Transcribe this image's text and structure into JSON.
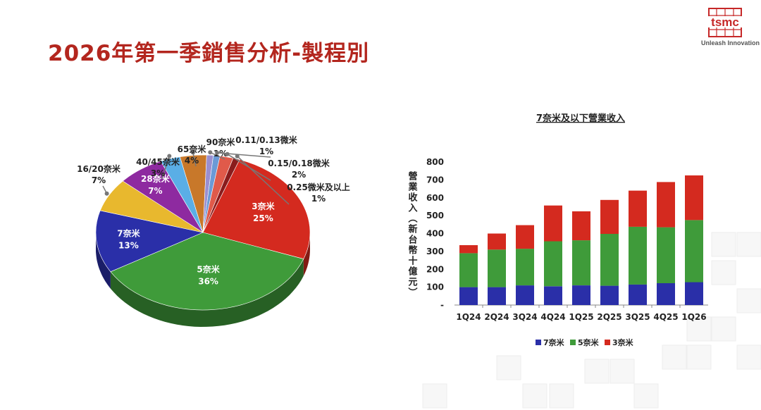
{
  "page": {
    "title": "2026年第一季銷售分析-製程別",
    "logo_text": "tsmc",
    "tagline": "Unleash Innovation"
  },
  "chart_data": [
    {
      "type": "pie",
      "title": "",
      "slices": [
        {
          "label": "3奈米",
          "pct_label": "25%",
          "value": 25,
          "color": "#d42a1f"
        },
        {
          "label": "5奈米",
          "pct_label": "36%",
          "value": 36,
          "color": "#3f9b3a"
        },
        {
          "label": "7奈米",
          "pct_label": "13%",
          "value": 13,
          "color": "#2a2fa8"
        },
        {
          "label": "16/20奈米",
          "pct_label": "7%",
          "value": 7,
          "color": "#e8b82e"
        },
        {
          "label": "28奈米",
          "pct_label": "7%",
          "value": 7,
          "color": "#8e2aa0"
        },
        {
          "label": "40/45奈米",
          "pct_label": "3%",
          "value": 3,
          "color": "#5aaee6"
        },
        {
          "label": "65奈米",
          "pct_label": "4%",
          "value": 4,
          "color": "#c8782a"
        },
        {
          "label": "90奈米",
          "pct_label": "1%",
          "value": 1,
          "color": "#9a8fd0"
        },
        {
          "label": "0.11/0.13微米",
          "pct_label": "1%",
          "value": 1,
          "color": "#6b9ad6"
        },
        {
          "label": "0.15/0.18微米",
          "pct_label": "2%",
          "value": 2,
          "color": "#e05a4a"
        },
        {
          "label": "0.25微米及以上",
          "pct_label": "1%",
          "value": 1,
          "color": "#8a1c1c"
        }
      ]
    },
    {
      "type": "bar",
      "stacked": true,
      "title": "7奈米及以下營業收入",
      "ylabel": "營業收入（新台幣十億元）",
      "categories": [
        "1Q24",
        "2Q24",
        "3Q24",
        "4Q24",
        "1Q25",
        "2Q25",
        "3Q25",
        "4Q25",
        "1Q26"
      ],
      "ylim": [
        0,
        800
      ],
      "yticks": [
        "-",
        "100",
        "200",
        "300",
        "400",
        "500",
        "600",
        "700",
        "800"
      ],
      "series": [
        {
          "name": "7奈米",
          "color": "#2a2fa8",
          "values": [
            100,
            100,
            110,
            105,
            110,
            108,
            115,
            122,
            128
          ]
        },
        {
          "name": "5奈米",
          "color": "#3f9b3a",
          "values": [
            190,
            210,
            205,
            252,
            252,
            290,
            323,
            313,
            347
          ]
        },
        {
          "name": "3奈米",
          "color": "#d42a1f",
          "values": [
            45,
            90,
            132,
            200,
            162,
            190,
            202,
            253,
            250
          ]
        }
      ],
      "legend_position": "bottom"
    }
  ]
}
